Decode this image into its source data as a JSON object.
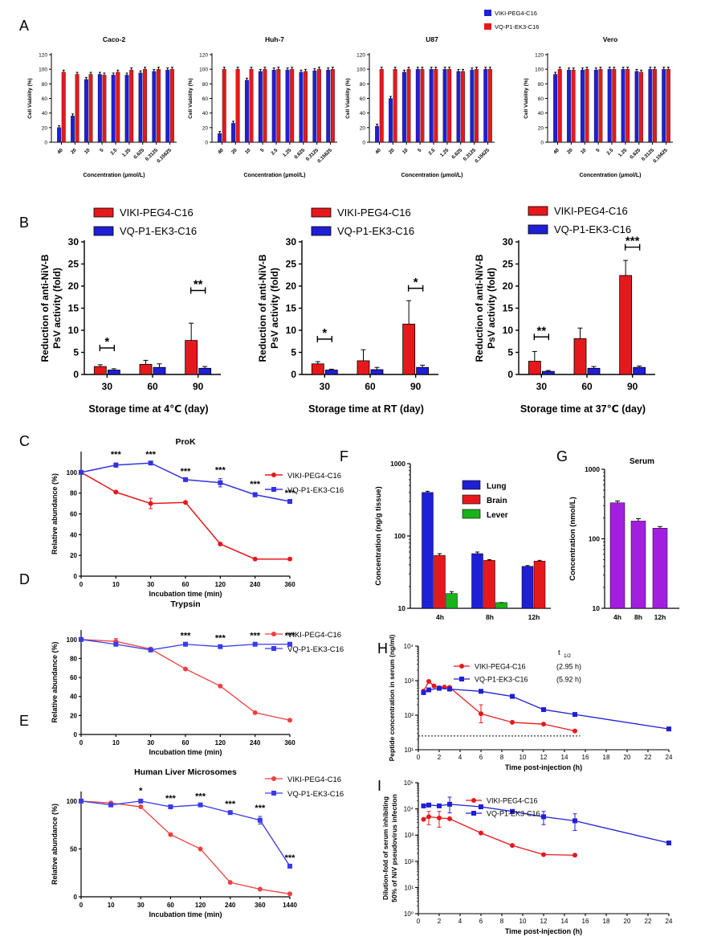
{
  "colors": {
    "blue": "#1f1fd6",
    "red": "#e5191c",
    "green": "#19b319",
    "purple": "#a21fe0",
    "panelC_red": "#e5191c",
    "panelC_blue": "#3333e0"
  },
  "chart_data": [
    {
      "panel": "A",
      "type": "bar",
      "legend": [
        "VIKI-PEG4-C16",
        "VQ-P1-EK3-C16"
      ],
      "ylabel": "Cell Viability (%)",
      "xlabel": "Concentration (μmol/L)",
      "ylim": [
        0,
        120
      ],
      "yticks": [
        "0",
        "20",
        "40",
        "60",
        "80",
        "100",
        "120"
      ],
      "categories": [
        "40",
        "20",
        "10",
        "5",
        "2.5",
        "1.25",
        "0.625",
        "0.3125",
        "0.15625"
      ],
      "subplots": [
        {
          "title": "Caco-2",
          "series": [
            {
              "name": "VIKI-PEG4-C16",
              "values": [
                20,
                36,
                86,
                93,
                92,
                92,
                95,
                97,
                99
              ]
            },
            {
              "name": "VQ-P1-EK3-C16",
              "values": [
                96,
                93,
                93,
                92,
                96,
                99,
                100,
                100,
                100
              ]
            }
          ]
        },
        {
          "title": "Huh-7",
          "series": [
            {
              "name": "VIKI-PEG4-C16",
              "values": [
                12,
                26,
                85,
                97,
                99,
                99,
                96,
                98,
                99
              ]
            },
            {
              "name": "VQ-P1-EK3-C16",
              "values": [
                100,
                100,
                100,
                100,
                100,
                100,
                97,
                100,
                100
              ]
            }
          ]
        },
        {
          "title": "U87",
          "series": [
            {
              "name": "VIKI-PEG4-C16",
              "values": [
                22,
                60,
                96,
                100,
                100,
                100,
                97,
                99,
                100
              ]
            },
            {
              "name": "VQ-P1-EK3-C16",
              "values": [
                100,
                100,
                100,
                100,
                100,
                100,
                97,
                100,
                100
              ]
            }
          ]
        },
        {
          "title": "Vero",
          "series": [
            {
              "name": "VIKI-PEG4-C16",
              "values": [
                93,
                99,
                99,
                99,
                100,
                100,
                97,
                100,
                100
              ]
            },
            {
              "name": "VQ-P1-EK3-C16",
              "values": [
                100,
                99,
                100,
                100,
                100,
                100,
                96,
                100,
                100
              ]
            }
          ]
        }
      ]
    },
    {
      "panel": "B",
      "type": "bar",
      "legend": [
        "VIKI-PEG4-C16",
        "VQ-P1-EK3-C16"
      ],
      "ylabel": [
        "Reduction of anti-NiV-B",
        "PsV activity (fold)"
      ],
      "ylim": [
        0,
        30
      ],
      "yticks": [
        "0",
        "5",
        "10",
        "15",
        "20",
        "25",
        "30"
      ],
      "categories": [
        "30",
        "60",
        "90"
      ],
      "subplots": [
        {
          "xlabel": "Storage time at 4℃ (day)",
          "series": [
            {
              "name": "VIKI-PEG4-C16",
              "values": [
                1.8,
                2.3,
                7.7
              ],
              "errors": [
                0.4,
                0.9,
                3.9
              ]
            },
            {
              "name": "VQ-P1-EK3-C16",
              "values": [
                1.0,
                1.6,
                1.4
              ],
              "errors": [
                0.3,
                0.8,
                0.4
              ]
            }
          ],
          "sig": [
            {
              "cat": 0,
              "label": "*",
              "y": 6
            },
            {
              "cat": 2,
              "label": "**",
              "y": 19
            }
          ]
        },
        {
          "xlabel": "Storage time at RT (day)",
          "series": [
            {
              "name": "VIKI-PEG4-C16",
              "values": [
                2.4,
                3.1,
                11.4
              ],
              "errors": [
                0.5,
                2.5,
                5.3
              ]
            },
            {
              "name": "VQ-P1-EK3-C16",
              "values": [
                1.0,
                1.1,
                1.6
              ],
              "errors": [
                0.2,
                0.5,
                0.5
              ]
            }
          ],
          "sig": [
            {
              "cat": 0,
              "label": "*",
              "y": 8
            },
            {
              "cat": 2,
              "label": "*",
              "y": 19.5
            }
          ]
        },
        {
          "xlabel": "Storage time at 37℃ (day)",
          "series": [
            {
              "name": "VIKI-PEG4-C16",
              "values": [
                3.0,
                8.1,
                22.4
              ],
              "errors": [
                2.2,
                2.4,
                3.4
              ]
            },
            {
              "name": "VQ-P1-EK3-C16",
              "values": [
                0.7,
                1.4,
                1.6
              ],
              "errors": [
                0.2,
                0.4,
                0.3
              ]
            }
          ],
          "sig": [
            {
              "cat": 0,
              "label": "**",
              "y": 8.5
            },
            {
              "cat": 2,
              "label": "***",
              "y": 28.8
            }
          ]
        }
      ]
    },
    {
      "panel": "C",
      "type": "line",
      "title": "ProK",
      "xlabel": "Incubation time (min)",
      "ylabel": "Relative abundance (%)",
      "ylim": [
        0,
        120
      ],
      "yticks": [
        "0",
        "20",
        "40",
        "60",
        "80",
        "100"
      ],
      "categories": [
        "0",
        "10",
        "30",
        "60",
        "120",
        "240",
        "360"
      ],
      "series": [
        {
          "name": "VIKI-PEG4-C16",
          "values": [
            100,
            81,
            70,
            71,
            31,
            16.5,
            16.5
          ],
          "errors": [
            0,
            0,
            5,
            0,
            0,
            0,
            0
          ]
        },
        {
          "name": "VQ-P1-EK3-C16",
          "values": [
            100,
            107,
            109,
            93,
            90,
            78.5,
            72
          ],
          "errors": [
            0,
            2,
            0,
            0,
            4,
            2,
            0
          ]
        }
      ],
      "sig": [
        "",
        "***",
        "***",
        "***",
        "***",
        "***",
        "***"
      ]
    },
    {
      "panel": "D",
      "type": "line",
      "title": "Trypsin",
      "xlabel": "Incubation time (min)",
      "ylabel": "Relative abundance (%)",
      "ylim": [
        0,
        110
      ],
      "yticks": [
        "0",
        "20",
        "40",
        "60",
        "80",
        "100"
      ],
      "categories": [
        "0",
        "10",
        "30",
        "60",
        "120",
        "240",
        "360"
      ],
      "series": [
        {
          "name": "VIKI-PEG4-C16",
          "values": [
            100,
            98,
            90,
            69,
            51,
            23,
            15
          ],
          "errors": [
            0,
            3,
            0,
            0,
            0,
            0,
            0
          ]
        },
        {
          "name": "VQ-P1-EK3-C16",
          "values": [
            100,
            95,
            89,
            95,
            92.5,
            95,
            95
          ],
          "errors": [
            0,
            0,
            0,
            0,
            0,
            0,
            0
          ]
        }
      ],
      "sig": [
        "",
        "",
        "",
        "***",
        "***",
        "***",
        "***"
      ]
    },
    {
      "panel": "E",
      "type": "line",
      "title": "Human Liver Microsomes",
      "xlabel": "Incubation time (min)",
      "ylabel": "Relative abundance (%)",
      "ylim": [
        0,
        110
      ],
      "yticks": [
        "0",
        "50",
        "100"
      ],
      "categories": [
        "0",
        "10",
        "30",
        "60",
        "120",
        "240",
        "360",
        "1440"
      ],
      "series": [
        {
          "name": "VIKI-PEG4-C16",
          "values": [
            100,
            98,
            94,
            65,
            50,
            15,
            8,
            3
          ],
          "errors": [
            0,
            0,
            0,
            0,
            0,
            0,
            0,
            0
          ]
        },
        {
          "name": "VQ-P1-EK3-C16",
          "values": [
            100,
            96,
            100,
            94,
            96,
            88,
            80,
            32
          ],
          "errors": [
            0,
            0,
            2,
            0,
            0,
            0,
            4,
            0
          ]
        }
      ],
      "sig": [
        "",
        "",
        "*",
        "***",
        "***",
        "***",
        "***",
        "***"
      ]
    },
    {
      "panel": "F",
      "type": "bar",
      "scale": "log",
      "ylabel": "Concentration (ng/g tissue)",
      "ylim": [
        10,
        1000
      ],
      "yticks": [
        "10",
        "100",
        "1000"
      ],
      "categories": [
        "4h",
        "8h",
        "12h"
      ],
      "series": [
        {
          "name": "Lung",
          "values": [
            400,
            57,
            38
          ],
          "errors": [
            15,
            3,
            1
          ]
        },
        {
          "name": "Brain",
          "values": [
            54,
            46,
            45
          ],
          "errors": [
            3,
            1,
            1
          ]
        },
        {
          "name": "Lever",
          "values": [
            16,
            12,
            null
          ],
          "errors": [
            1,
            0,
            0
          ]
        }
      ]
    },
    {
      "panel": "G",
      "type": "bar",
      "scale": "log",
      "title": "Serum",
      "ylabel": "Concentration (nmol/L)",
      "ylim": [
        10,
        1000
      ],
      "yticks": [
        "10",
        "100",
        "1000"
      ],
      "categories": [
        "4h",
        "8h",
        "12h"
      ],
      "values": [
        330,
        180,
        142
      ],
      "errors": [
        20,
        15,
        8
      ]
    },
    {
      "panel": "H",
      "type": "line",
      "scale": "log",
      "xlabel": "Time post-injection (h)",
      "ylabel": "Peptide concentration in serum (ng/ml)",
      "xlim": [
        0,
        24
      ],
      "ylim": [
        10,
        10000
      ],
      "xticks": [
        "0",
        "2",
        "4",
        "6",
        "8",
        "10",
        "12",
        "14",
        "16",
        "18",
        "20",
        "22",
        "24"
      ],
      "legend_title": "t",
      "legend_title_sub": "1/2",
      "dotted_line": 25,
      "series": [
        {
          "name": "VIKI-PEG4-C16",
          "half_life": "(2.95 h)",
          "x": [
            0.5,
            1,
            1.5,
            2,
            2.5,
            3,
            6,
            9,
            12,
            15
          ],
          "y": [
            500,
            950,
            700,
            620,
            650,
            640,
            110,
            62,
            55,
            35
          ]
        },
        {
          "name": "VQ-P1-EK3-C16",
          "half_life": "(5.92 h)",
          "x": [
            0.5,
            1,
            2,
            3,
            6,
            9,
            12,
            15,
            24
          ],
          "y": [
            450,
            540,
            600,
            570,
            490,
            350,
            145,
            105,
            40
          ]
        }
      ]
    },
    {
      "panel": "I",
      "type": "line",
      "scale": "log",
      "xlabel": "Time post-injection (h)",
      "ylabel": [
        "Dilution-fold of serum inhibiting",
        "50% of NiV pseudovirus infection"
      ],
      "xlim": [
        0,
        24
      ],
      "ylim": [
        1,
        100000
      ],
      "xticks": [
        "0",
        "2",
        "4",
        "6",
        "8",
        "10",
        "12",
        "14",
        "16",
        "18",
        "20",
        "22",
        "24"
      ],
      "series": [
        {
          "name": "VIKI-PEG4-C16",
          "x": [
            0.5,
            1,
            2,
            3,
            6,
            9,
            12,
            15
          ],
          "y": [
            4000,
            5000,
            4500,
            4200,
            1200,
            400,
            180,
            170
          ]
        },
        {
          "name": "VQ-P1-EK3-C16",
          "x": [
            0.5,
            1,
            2,
            3,
            6,
            9,
            12,
            15,
            24
          ],
          "y": [
            13000,
            14000,
            13000,
            15000,
            12000,
            8000,
            5000,
            3500,
            500
          ]
        }
      ]
    }
  ],
  "labels": {
    "A": "A",
    "B": "B",
    "C": "C",
    "D": "D",
    "E": "E",
    "F": "F",
    "G": "G",
    "H": "H",
    "I": "I"
  },
  "axis_log_labels": {
    "I": [
      "10⁰",
      "10¹",
      "10²",
      "10³",
      "10⁴",
      "10⁵"
    ],
    "H": [
      "10¹",
      "10²",
      "10³",
      "10⁴"
    ]
  }
}
